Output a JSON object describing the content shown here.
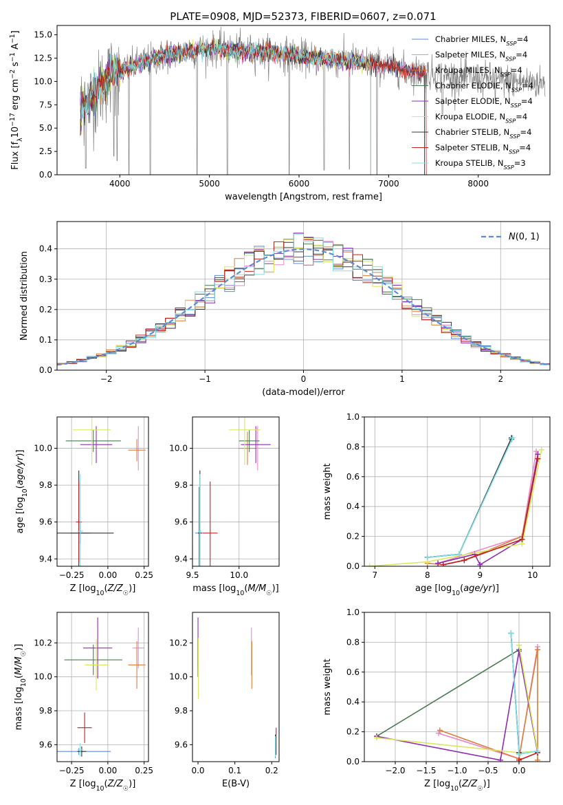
{
  "figure": {
    "title": "PLATE=0908, MJD=52373, FIBERID=0607, z=0.071"
  },
  "model_colors": [
    "#5b8bd6",
    "#e88ac9",
    "#e07b39",
    "#4a7a52",
    "#8e2bb0",
    "#d8e85a",
    "#333333",
    "#c0201e",
    "#7fe0e8"
  ],
  "chart_data": [
    {
      "id": "spectrum",
      "type": "line",
      "xlabel": "wavelength [Angstrom, rest frame]",
      "ylabel": "Flux [fλ10⁻¹⁷ erg cm⁻² s⁻¹ A⁻¹]",
      "xlim": [
        3300,
        8800
      ],
      "ylim": [
        0,
        16
      ],
      "xticks": [
        4000,
        5000,
        6000,
        7000,
        8000
      ],
      "yticks": [
        0.0,
        2.5,
        5.0,
        7.5,
        10.0,
        12.5,
        15.0
      ],
      "grid": false,
      "legend_position": "upper-right",
      "legend": [
        "Chabrier MILES, N_SSP=4",
        "Salpeter MILES, N_SSP=4",
        "Kroupa MILES, N_SSP=4",
        "Chabrier ELODIE, N_SSP=4",
        "Salpeter ELODIE, N_SSP=4",
        "Kroupa ELODIE, N_SSP=4",
        "Chabrier STELIB, N_SSP=4",
        "Salpeter STELIB, N_SSP=4",
        "Kroupa STELIB, N_SSP=3"
      ],
      "data_color": "#808080",
      "data_range": [
        3560,
        8750
      ],
      "continuum": [
        [
          3560,
          7.4
        ],
        [
          3700,
          8.2
        ],
        [
          3900,
          10.5
        ],
        [
          4100,
          11.5
        ],
        [
          4300,
          12.2
        ],
        [
          4600,
          13.0
        ],
        [
          5000,
          13.5
        ],
        [
          5400,
          13.2
        ],
        [
          5800,
          13.0
        ],
        [
          6200,
          12.4
        ],
        [
          6600,
          12.2
        ],
        [
          7000,
          11.6
        ],
        [
          7300,
          11.0
        ],
        [
          7600,
          10.6
        ],
        [
          8000,
          10.3
        ],
        [
          8400,
          10.0
        ],
        [
          8750,
          9.8
        ]
      ],
      "absorption_lines": [
        [
          3620,
          0.7
        ],
        [
          3935,
          2.0
        ],
        [
          3970,
          1.5
        ],
        [
          4102,
          0.0
        ],
        [
          4340,
          0.0
        ],
        [
          4861,
          0.0
        ],
        [
          5200,
          0.0
        ],
        [
          5890,
          0.0
        ],
        [
          6280,
          0.5
        ],
        [
          6563,
          0.6
        ],
        [
          6870,
          0.0
        ],
        [
          7600,
          6.5
        ],
        [
          8190,
          8.0
        ]
      ],
      "model_cuts": {
        "Kroupa STELIB, N_SSP=3": [
          3560,
          6800
        ],
        "Chabrier STELIB, N_SSP=4": [
          3560,
          7400
        ],
        "Salpeter STELIB, N_SSP=4": [
          3560,
          7420
        ],
        "Chabrier ELODIE, N_SSP=4": [
          3560,
          6800
        ],
        "Salpeter ELODIE, N_SSP=4": [
          3560,
          6800
        ],
        "Kroupa ELODIE, N_SSP=4": [
          3560,
          6800
        ],
        "Chabrier MILES, N_SSP=4": [
          3560,
          7400
        ],
        "Salpeter MILES, N_SSP=4": [
          3560,
          7400
        ],
        "Kroupa MILES, N_SSP=4": [
          3560,
          7400
        ]
      }
    },
    {
      "id": "residuals",
      "type": "line",
      "xlabel": "(data-model)/error",
      "ylabel": "Normed distribution",
      "xlim": [
        -2.5,
        2.5
      ],
      "ylim": [
        0,
        0.49
      ],
      "xticks": [
        -2,
        -1,
        0,
        1,
        2
      ],
      "yticks": [
        0.0,
        0.1,
        0.2,
        0.3,
        0.4
      ],
      "grid": true,
      "legend_position": "upper-right",
      "legend": [
        "N(0,1)"
      ],
      "reference_curve": {
        "name": "N(0,1)",
        "mean": 0,
        "sigma": 1,
        "color": "#5b8bd6"
      },
      "bin_width": 0.1
    },
    {
      "id": "age_vs_Z",
      "type": "errorbar",
      "xlabel": "Z [log10(Z/Z☉)]",
      "ylabel": "age  [log10(age/yr)]",
      "xlim": [
        -0.35,
        0.28
      ],
      "ylim": [
        9.36,
        10.17
      ],
      "xticks": [
        -0.25,
        0.0,
        0.25
      ],
      "yticks": [
        9.4,
        9.6,
        9.8,
        10.0
      ],
      "grid": true,
      "points": [
        {
          "x": -0.19,
          "y": 9.54,
          "xerr": 0.07,
          "yerr": 0.06,
          "color": "#5b8bd6"
        },
        {
          "x": 0.21,
          "y": 10.0,
          "xerr": 0.03,
          "yerr": 0.12,
          "color": "#e88ac9"
        },
        {
          "x": 0.2,
          "y": 9.99,
          "xerr": 0.06,
          "yerr": 0.06,
          "color": "#e07b39"
        },
        {
          "x": -0.1,
          "y": 10.04,
          "xerr": 0.19,
          "yerr": 0.06,
          "color": "#4a7a52"
        },
        {
          "x": -0.08,
          "y": 10.02,
          "xerr": 0.11,
          "yerr": 0.1,
          "color": "#8e2bb0"
        },
        {
          "x": -0.11,
          "y": 10.1,
          "xerr": 0.13,
          "yerr": 0.19,
          "color": "#d8e85a"
        },
        {
          "x": -0.2,
          "y": 9.54,
          "xerr": 0.24,
          "yerr": 0.34,
          "color": "#333333"
        },
        {
          "x": -0.2,
          "y": 9.6,
          "xerr": 0.02,
          "yerr": 0.22,
          "color": "#c0201e"
        },
        {
          "x": -0.19,
          "y": 9.55,
          "xerr": 0.02,
          "yerr": 0.31,
          "color": "#7fe0e8"
        }
      ]
    },
    {
      "id": "age_vs_mass",
      "type": "errorbar",
      "xlabel": "mass [log10(M/M☉)]",
      "ylabel": "",
      "xlim": [
        9.5,
        10.43
      ],
      "ylim": [
        9.36,
        10.17
      ],
      "xticks": [
        9.5,
        10.0
      ],
      "yticks": [
        9.4,
        9.6,
        9.8,
        10.0
      ],
      "grid": true,
      "points": [
        {
          "x": 9.57,
          "y": 9.54,
          "xerr": 0.04,
          "yerr": 0.25,
          "color": "#5b8bd6"
        },
        {
          "x": 10.2,
          "y": 10.0,
          "xerr": 0.04,
          "yerr": 0.12,
          "color": "#e88ac9"
        },
        {
          "x": 10.09,
          "y": 10.0,
          "xerr": 0.09,
          "yerr": 0.09,
          "color": "#e07b39"
        },
        {
          "x": 10.11,
          "y": 10.04,
          "xerr": 0.11,
          "yerr": 0.06,
          "color": "#4a7a52"
        },
        {
          "x": 10.18,
          "y": 10.02,
          "xerr": 0.16,
          "yerr": 0.1,
          "color": "#8e2bb0"
        },
        {
          "x": 10.06,
          "y": 10.1,
          "xerr": 0.17,
          "yerr": 0.19,
          "color": "#d8e85a"
        },
        {
          "x": 9.58,
          "y": 9.54,
          "xerr": 0.02,
          "yerr": 0.34,
          "color": "#333333"
        },
        {
          "x": 9.69,
          "y": 9.54,
          "xerr": 0.08,
          "yerr": 0.28,
          "color": "#c0201e"
        },
        {
          "x": 9.58,
          "y": 9.55,
          "xerr": 0.02,
          "yerr": 0.31,
          "color": "#7fe0e8"
        }
      ]
    },
    {
      "id": "massweight_vs_age",
      "type": "line",
      "xlabel": "age  [log10(age/yr)]",
      "ylabel": "mass weight",
      "xlim": [
        6.8,
        10.33
      ],
      "ylim": [
        0,
        1
      ],
      "xticks": [
        7,
        8,
        9,
        10
      ],
      "yticks": [
        0.0,
        0.2,
        0.4,
        0.6,
        0.8,
        1.0
      ],
      "grid": true,
      "series": [
        {
          "color": "#5b8bd6",
          "points": [
            [
              8.0,
              0.06
            ],
            [
              8.6,
              0.08
            ],
            [
              9.6,
              0.86
            ]
          ]
        },
        {
          "color": "#e88ac9",
          "points": [
            [
              8.2,
              0.02
            ],
            [
              9.8,
              0.2
            ],
            [
              10.07,
              0.77
            ]
          ]
        },
        {
          "color": "#e07b39",
          "points": [
            [
              8.0,
              0.02
            ],
            [
              8.3,
              0.01
            ],
            [
              8.7,
              0.04
            ],
            [
              9.8,
              0.2
            ],
            [
              10.1,
              0.75
            ]
          ]
        },
        {
          "color": "#4a7a52",
          "points": [
            [
              8.0,
              0.06
            ],
            [
              8.6,
              0.08
            ],
            [
              9.6,
              0.85
            ]
          ]
        },
        {
          "color": "#8e2bb0",
          "points": [
            [
              8.2,
              0.02
            ],
            [
              8.9,
              0.08
            ],
            [
              9.0,
              0.01
            ],
            [
              9.8,
              0.18
            ],
            [
              10.1,
              0.75
            ]
          ]
        },
        {
          "color": "#d8e85a",
          "points": [
            [
              6.9,
              0.0
            ],
            [
              8.0,
              0.03
            ],
            [
              9.8,
              0.15
            ],
            [
              10.17,
              0.78
            ]
          ]
        },
        {
          "color": "#333333",
          "points": [
            [
              8.0,
              0.06
            ],
            [
              8.6,
              0.08
            ],
            [
              9.6,
              0.86
            ]
          ]
        },
        {
          "color": "#c0201e",
          "points": [
            [
              8.3,
              0.01
            ],
            [
              8.7,
              0.04
            ],
            [
              9.8,
              0.18
            ],
            [
              10.1,
              0.72
            ]
          ]
        },
        {
          "color": "#7fe0e8",
          "points": [
            [
              8.0,
              0.06
            ],
            [
              8.6,
              0.08
            ],
            [
              9.62,
              0.86
            ]
          ]
        }
      ]
    },
    {
      "id": "mass_vs_Z",
      "type": "errorbar",
      "xlabel": "Z [log10(Z/Z☉)]",
      "ylabel": "mass [log10(M/M☉)]",
      "xlim": [
        -0.35,
        0.28
      ],
      "ylim": [
        9.5,
        10.38
      ],
      "xticks": [
        -0.25,
        0.0,
        0.25
      ],
      "yticks": [
        9.6,
        9.8,
        10.0,
        10.2
      ],
      "grid": true,
      "points": [
        {
          "x": -0.2,
          "y": 9.56,
          "xerr": 0.22,
          "yerr": 0.02,
          "color": "#5b8bd6"
        },
        {
          "x": 0.21,
          "y": 10.17,
          "xerr": 0.04,
          "yerr": 0.12,
          "color": "#e88ac9"
        },
        {
          "x": 0.2,
          "y": 10.07,
          "xerr": 0.06,
          "yerr": 0.14,
          "color": "#e07b39"
        },
        {
          "x": -0.1,
          "y": 10.1,
          "xerr": 0.2,
          "yerr": 0.09,
          "color": "#4a7a52"
        },
        {
          "x": -0.07,
          "y": 10.17,
          "xerr": 0.1,
          "yerr": 0.18,
          "color": "#8e2bb0"
        },
        {
          "x": -0.08,
          "y": 10.07,
          "xerr": 0.08,
          "yerr": 0.15,
          "color": "#d8e85a"
        },
        {
          "x": -0.18,
          "y": 9.56,
          "xerr": 0.03,
          "yerr": 0.03,
          "color": "#333333"
        },
        {
          "x": -0.16,
          "y": 9.7,
          "xerr": 0.05,
          "yerr": 0.09,
          "color": "#c0201e"
        },
        {
          "x": -0.19,
          "y": 9.57,
          "xerr": 0.02,
          "yerr": 0.04,
          "color": "#7fe0e8"
        }
      ]
    },
    {
      "id": "mass_vs_ebv",
      "type": "errorbar",
      "xlabel": "E(B-V)",
      "ylabel": "",
      "xlim": [
        -0.015,
        0.22
      ],
      "ylim": [
        9.5,
        10.38
      ],
      "xticks": [
        0.0,
        0.1,
        0.2
      ],
      "yticks": [
        9.6,
        9.8,
        10.0,
        10.2
      ],
      "grid": false,
      "points": [
        {
          "x": 0.21,
          "y": 9.57,
          "xerr": 0.0,
          "yerr": 0.05,
          "color": "#5b8bd6"
        },
        {
          "x": 0.145,
          "y": 10.15,
          "xerr": 0.0,
          "yerr": 0.14,
          "color": "#e88ac9"
        },
        {
          "x": 0.146,
          "y": 10.07,
          "xerr": 0.0,
          "yerr": 0.14,
          "color": "#e07b39"
        },
        {
          "x": 0.0,
          "y": 10.1,
          "xerr": 0.0,
          "yerr": 0.1,
          "color": "#4a7a52"
        },
        {
          "x": 0.0,
          "y": 10.2,
          "xerr": 0.0,
          "yerr": 0.15,
          "color": "#8e2bb0"
        },
        {
          "x": 0.001,
          "y": 10.05,
          "xerr": 0.0,
          "yerr": 0.18,
          "color": "#d8e85a"
        },
        {
          "x": 0.21,
          "y": 9.6,
          "xerr": 0.0,
          "yerr": 0.06,
          "color": "#333333"
        },
        {
          "x": 0.212,
          "y": 9.62,
          "xerr": 0.0,
          "yerr": 0.08,
          "color": "#c0201e"
        },
        {
          "x": 0.21,
          "y": 9.59,
          "xerr": 0.0,
          "yerr": 0.06,
          "color": "#7fe0e8"
        }
      ]
    },
    {
      "id": "massweight_vs_Z",
      "type": "line",
      "xlabel": "Z [log10(Z/Z☉)]",
      "ylabel": "mass weight",
      "xlim": [
        -2.5,
        0.5
      ],
      "ylim": [
        0,
        1
      ],
      "xticks": [
        -2.0,
        -1.5,
        -1.0,
        -0.5,
        0.0
      ],
      "yticks": [
        0.0,
        0.2,
        0.4,
        0.6,
        0.8,
        1.0
      ],
      "grid": true,
      "series": [
        {
          "color": "#5b8bd6",
          "points": [
            [
              -0.13,
              0.86
            ],
            [
              0.0,
              0.06
            ],
            [
              0.3,
              0.07
            ]
          ]
        },
        {
          "color": "#e88ac9",
          "points": [
            [
              -1.3,
              0.19
            ],
            [
              0.0,
              0.02
            ],
            [
              0.3,
              0.77
            ]
          ]
        },
        {
          "color": "#e07b39",
          "points": [
            [
              -1.28,
              0.21
            ],
            [
              0.0,
              0.02
            ],
            [
              0.3,
              0.75
            ],
            [
              0.3,
              0.01
            ]
          ]
        },
        {
          "color": "#4a7a52",
          "points": [
            [
              -2.3,
              0.17
            ],
            [
              0.0,
              0.75
            ]
          ]
        },
        {
          "color": "#8e2bb0",
          "points": [
            [
              -2.3,
              0.17
            ],
            [
              -0.3,
              0.01
            ],
            [
              0.0,
              0.74
            ],
            [
              0.3,
              0.06
            ]
          ]
        },
        {
          "color": "#d8e85a",
          "points": [
            [
              -2.3,
              0.16
            ],
            [
              0.0,
              0.06
            ],
            [
              0.3,
              0.07
            ],
            [
              0.0,
              0.78
            ]
          ]
        },
        {
          "color": "#333333",
          "points": [
            [
              -0.13,
              0.86
            ],
            [
              0.0,
              0.06
            ]
          ]
        },
        {
          "color": "#c0201e",
          "points": [
            [
              0.0,
              0.01
            ],
            [
              0.3,
              0.06
            ]
          ]
        },
        {
          "color": "#7fe0e8",
          "points": [
            [
              -0.13,
              0.86
            ],
            [
              0.0,
              0.05
            ],
            [
              0.3,
              0.07
            ]
          ]
        }
      ]
    }
  ]
}
